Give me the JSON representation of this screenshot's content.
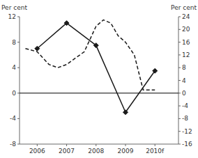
{
  "chart_data": {
    "type": "line",
    "ylabel": "Per cent",
    "y2label": "Per cent",
    "xlim": [
      2005.4,
      2010.8
    ],
    "xticks": [
      2006,
      2007,
      2008,
      2009,
      {
        "value": 2010,
        "label": "2010f"
      }
    ],
    "ylim": [
      -8,
      12
    ],
    "yticks": [
      -8,
      -4,
      0,
      4,
      8,
      12
    ],
    "y2lim": [
      -16,
      24
    ],
    "y2ticks": [
      -16,
      -12,
      -8,
      -4,
      0,
      4,
      8,
      12,
      16,
      20,
      24
    ],
    "grid": false,
    "series": [
      {
        "color": "#1a1a1a",
        "marker": "diamond",
        "line_style": "solid",
        "x": [
          2006,
          2007,
          2008,
          2009,
          2010
        ],
        "values": [
          7.0,
          11.0,
          7.5,
          -3.0,
          3.5
        ]
      },
      {
        "color": "#1a1a1a",
        "line_style": "dashed",
        "x": [
          2005.6,
          2006.0,
          2006.4,
          2006.7,
          2007.0,
          2007.3,
          2007.6,
          2008.0,
          2008.25,
          2008.5,
          2008.75,
          2009.0,
          2009.3,
          2009.6,
          2009.9,
          2010.0
        ],
        "values": [
          7.0,
          6.5,
          4.5,
          4.0,
          4.5,
          5.5,
          6.5,
          10.5,
          11.5,
          11.0,
          9.0,
          8.0,
          6.0,
          0.5,
          0.5,
          0.5
        ]
      }
    ]
  }
}
